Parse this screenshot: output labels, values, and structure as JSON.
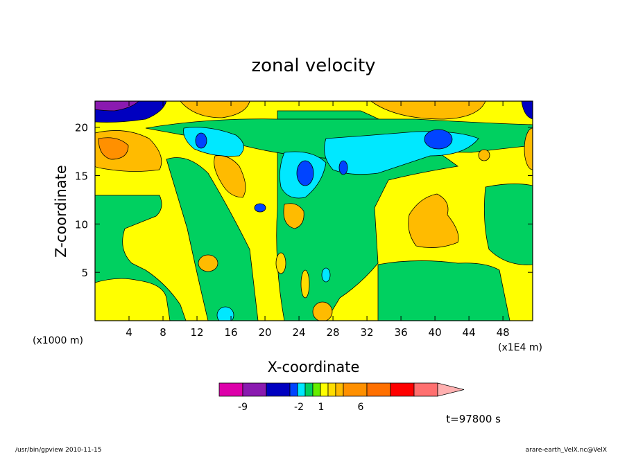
{
  "chart_data": {
    "type": "heatmap",
    "title": "zonal velocity",
    "xlabel": "X-coordinate",
    "ylabel": "Z-coordinate",
    "x_unit_left": "(x1000 m)",
    "x_unit_right": "(x1E4 m)",
    "xlim": [
      0,
      51.5
    ],
    "ylim": [
      0,
      22.7
    ],
    "x_ticks": [
      4,
      8,
      12,
      16,
      20,
      24,
      28,
      32,
      36,
      40,
      44,
      48
    ],
    "y_ticks": [
      5,
      10,
      15,
      20
    ],
    "colorbar": {
      "colors": [
        "#dd00aa",
        "#8a1ab0",
        "#0000c0",
        "#0044ff",
        "#00e8ff",
        "#00d060",
        "#66ee00",
        "#ffff00",
        "#ffdd00",
        "#ffbb00",
        "#ff9000",
        "#ff7000",
        "#ff0000",
        "#ff7070",
        "#ffb0b0"
      ],
      "tick_labels": [
        "-9",
        "-2",
        "1",
        "6"
      ]
    },
    "annotation": "t=97800 s"
  },
  "footer": {
    "left": "/usr/bin/gpview  2010-11-15",
    "right": "arare-earth_VelX.nc@VelX"
  }
}
